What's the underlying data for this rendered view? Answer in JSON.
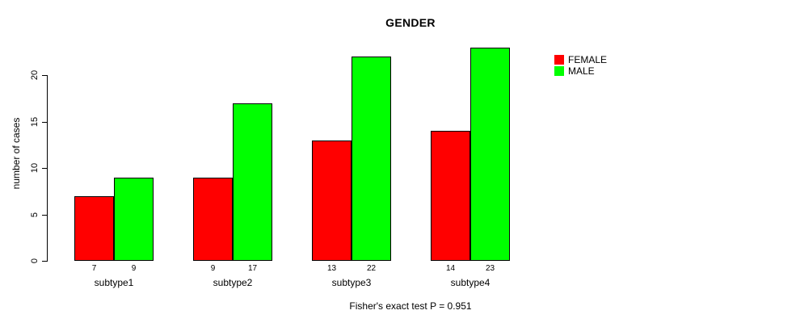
{
  "title": "GENDER",
  "caption": "Fisher's exact test P = 0.951",
  "y_axis": {
    "label": "number of cases",
    "ticks": [
      0,
      5,
      10,
      15,
      20
    ]
  },
  "legend": {
    "items": [
      {
        "label": "FEMALE",
        "color": "#ff0000"
      },
      {
        "label": "MALE",
        "color": "#00ff00"
      }
    ]
  },
  "chart_data": {
    "type": "bar",
    "title": "GENDER",
    "xlabel": "",
    "ylabel": "number of cases",
    "categories": [
      "subtype1",
      "subtype2",
      "subtype3",
      "subtype4"
    ],
    "series": [
      {
        "name": "FEMALE",
        "color": "#ff0000",
        "values": [
          7,
          9,
          13,
          14
        ]
      },
      {
        "name": "MALE",
        "color": "#00ff00",
        "values": [
          9,
          17,
          22,
          23
        ]
      }
    ],
    "ylim": [
      0,
      23
    ],
    "yticks": [
      0,
      5,
      10,
      15,
      20
    ],
    "grid": false,
    "legend_position": "top-right",
    "bar_value_labels": true,
    "annotation": "Fisher's exact test P = 0.951"
  }
}
